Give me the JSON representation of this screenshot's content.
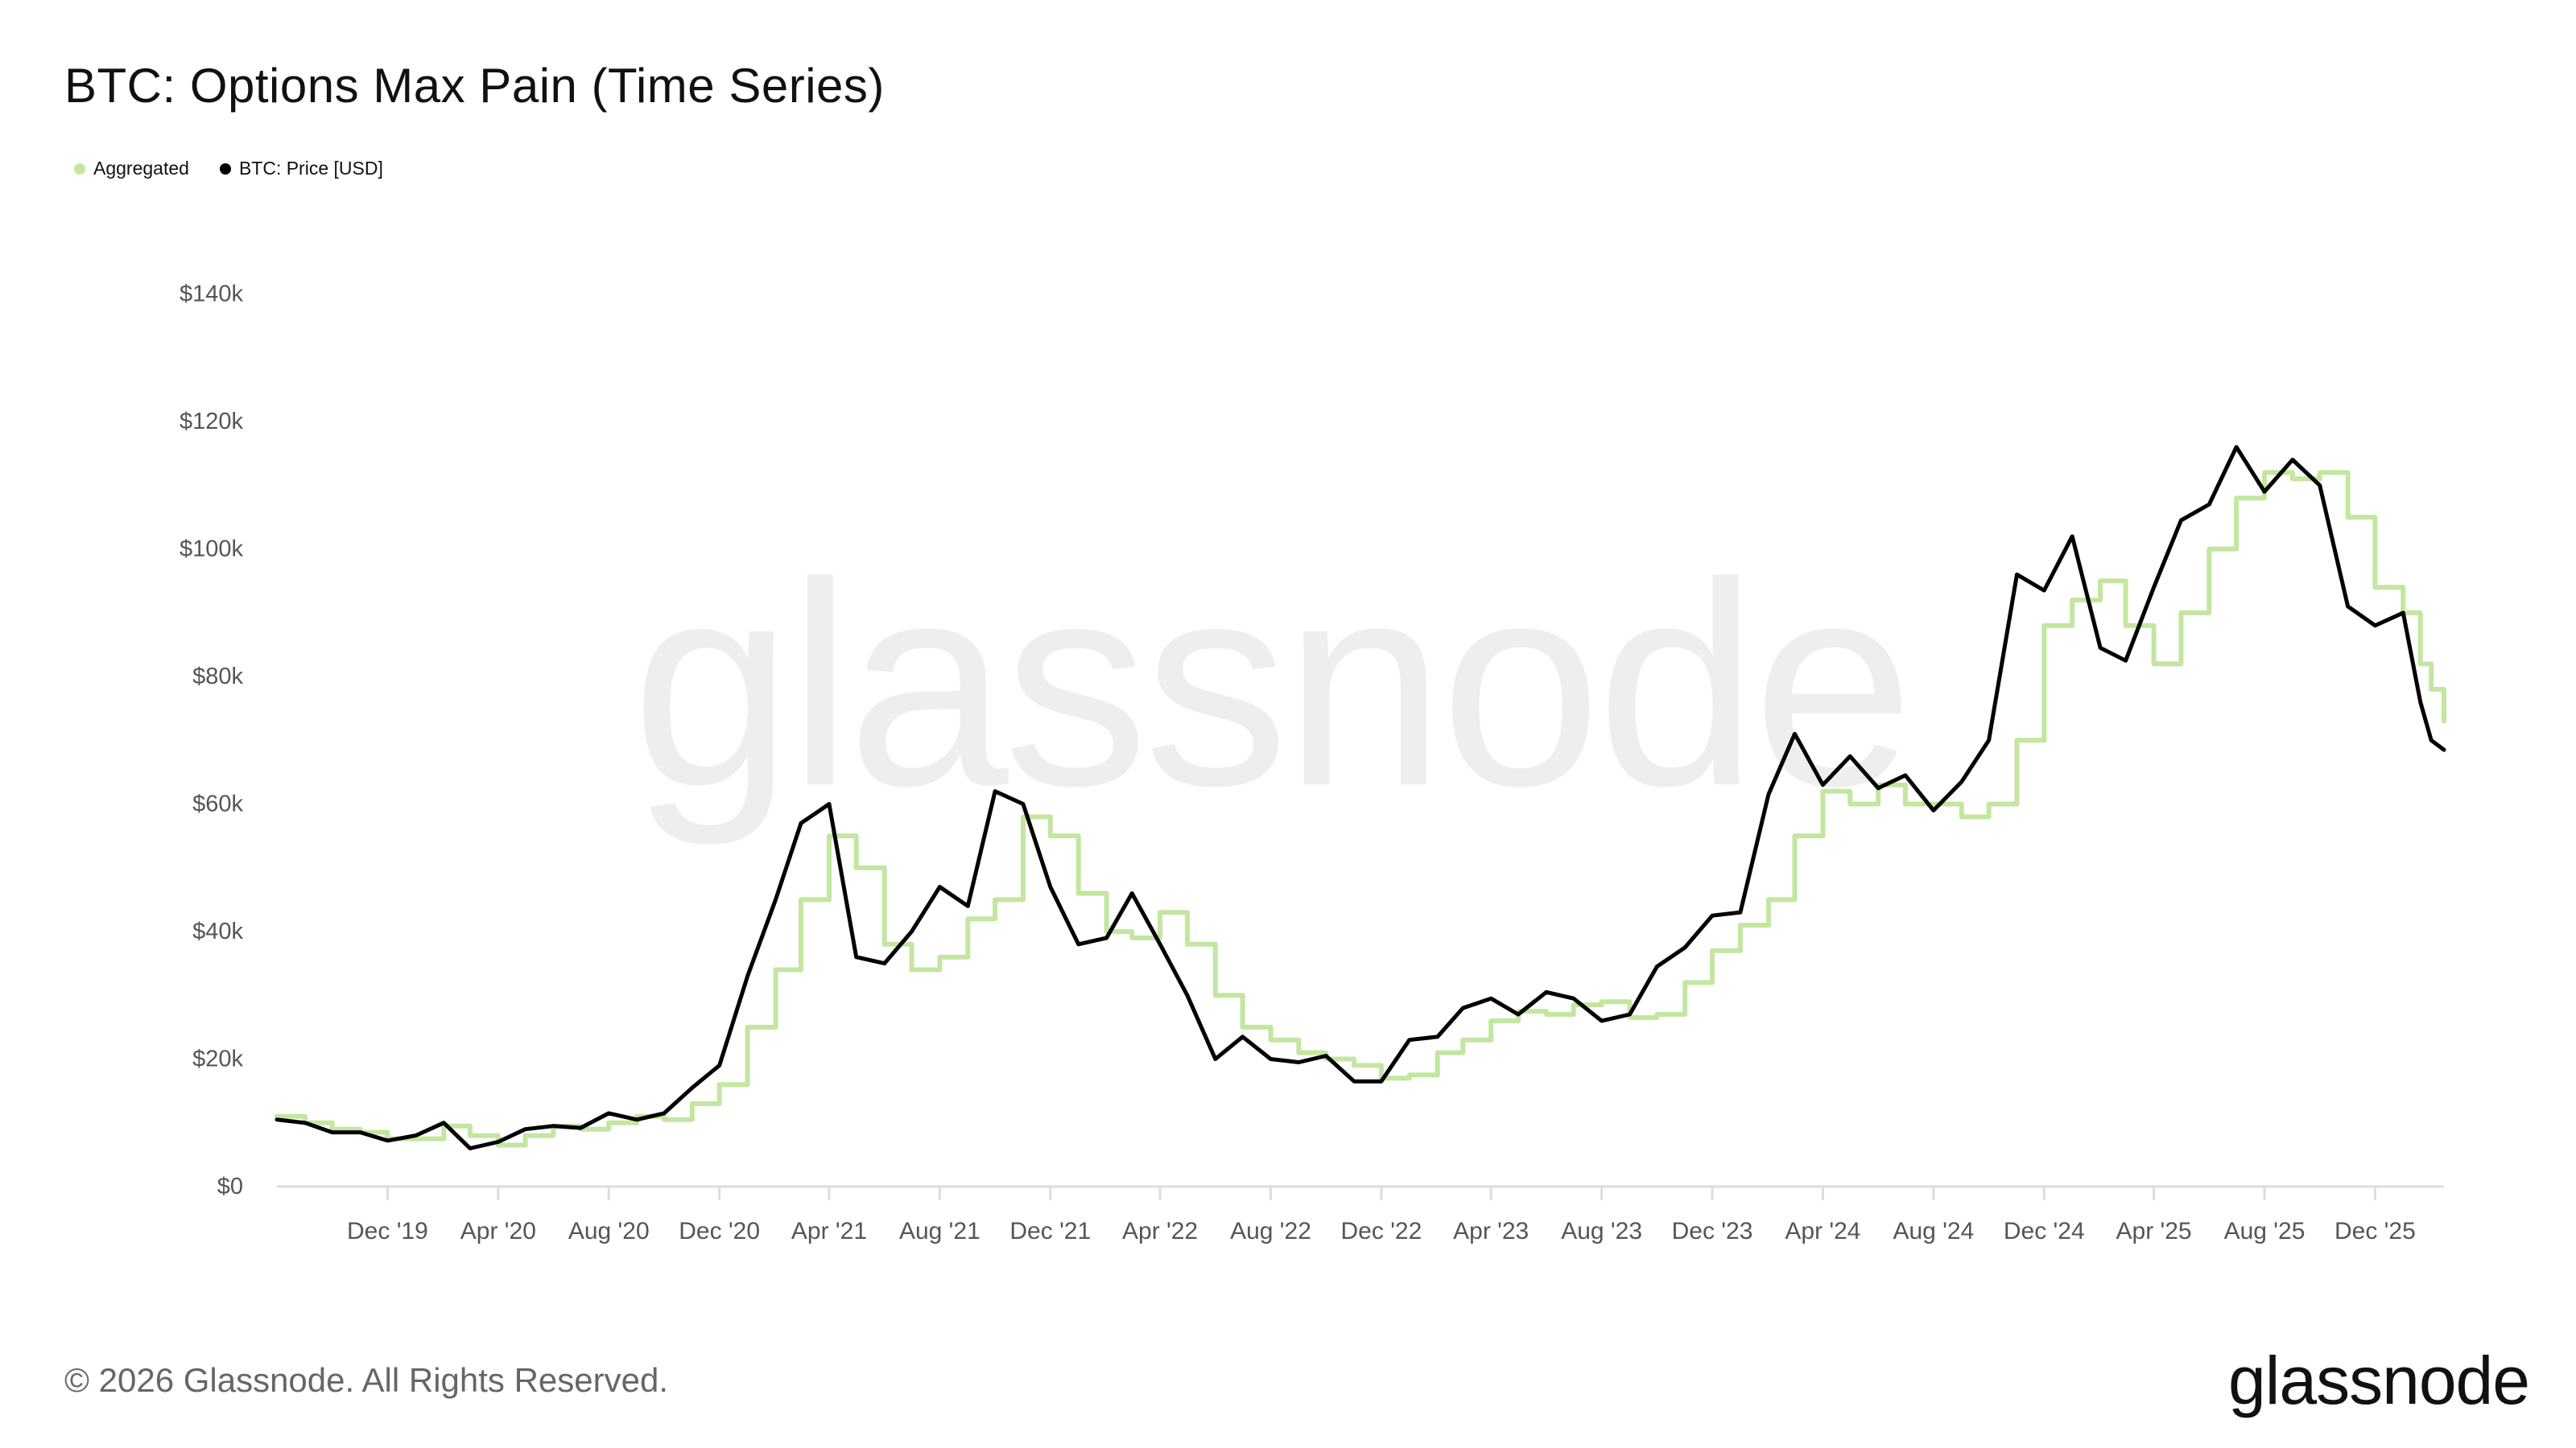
{
  "header": {
    "title": "BTC: Options Max Pain (Time Series)"
  },
  "legend": [
    {
      "label": "Aggregated",
      "color": "#c3e6a0"
    },
    {
      "label": "BTC: Price [USD]",
      "color": "#000000"
    }
  ],
  "watermark": "glassnode",
  "footer": {
    "copyright": "© 2026 Glassnode. All Rights Reserved.",
    "logo": "glassnode"
  },
  "colors": {
    "aggregated": "#c3e6a0",
    "price": "#000000",
    "axis_text": "#555555",
    "axis_line": "#dddddd"
  },
  "chart_data": {
    "type": "line",
    "title": "BTC: Options Max Pain (Time Series)",
    "xlabel": "",
    "ylabel": "",
    "ylim": [
      0,
      140000
    ],
    "xlim": [
      "2019-08-01",
      "2026-02-15"
    ],
    "grid": false,
    "legend_position": "top-left",
    "y_ticks": [
      {
        "value": 0,
        "label": "$0"
      },
      {
        "value": 20000,
        "label": "$20k"
      },
      {
        "value": 40000,
        "label": "$40k"
      },
      {
        "value": 60000,
        "label": "$60k"
      },
      {
        "value": 80000,
        "label": "$80k"
      },
      {
        "value": 100000,
        "label": "$100k"
      },
      {
        "value": 120000,
        "label": "$120k"
      },
      {
        "value": 140000,
        "label": "$140k"
      }
    ],
    "x_ticks": [
      {
        "date": "2019-12-01",
        "label": "Dec '19"
      },
      {
        "date": "2020-04-01",
        "label": "Apr '20"
      },
      {
        "date": "2020-08-01",
        "label": "Aug '20"
      },
      {
        "date": "2020-12-01",
        "label": "Dec '20"
      },
      {
        "date": "2021-04-01",
        "label": "Apr '21"
      },
      {
        "date": "2021-08-01",
        "label": "Aug '21"
      },
      {
        "date": "2021-12-01",
        "label": "Dec '21"
      },
      {
        "date": "2022-04-01",
        "label": "Apr '22"
      },
      {
        "date": "2022-08-01",
        "label": "Aug '22"
      },
      {
        "date": "2022-12-01",
        "label": "Dec '22"
      },
      {
        "date": "2023-04-01",
        "label": "Apr '23"
      },
      {
        "date": "2023-08-01",
        "label": "Aug '23"
      },
      {
        "date": "2023-12-01",
        "label": "Dec '23"
      },
      {
        "date": "2024-04-01",
        "label": "Apr '24"
      },
      {
        "date": "2024-08-01",
        "label": "Aug '24"
      },
      {
        "date": "2024-12-01",
        "label": "Dec '24"
      },
      {
        "date": "2025-04-01",
        "label": "Apr '25"
      },
      {
        "date": "2025-08-01",
        "label": "Aug '25"
      },
      {
        "date": "2025-12-01",
        "label": "Dec '25"
      }
    ],
    "series": [
      {
        "name": "Aggregated",
        "color": "#c3e6a0",
        "points": [
          [
            "2019-08-01",
            11000
          ],
          [
            "2019-09-01",
            10000
          ],
          [
            "2019-10-01",
            9000
          ],
          [
            "2019-11-01",
            8500
          ],
          [
            "2019-12-01",
            7500
          ],
          [
            "2020-01-01",
            7500
          ],
          [
            "2020-02-01",
            9500
          ],
          [
            "2020-03-01",
            8000
          ],
          [
            "2020-04-01",
            6500
          ],
          [
            "2020-05-01",
            8000
          ],
          [
            "2020-06-01",
            9500
          ],
          [
            "2020-07-01",
            9000
          ],
          [
            "2020-08-01",
            10000
          ],
          [
            "2020-09-01",
            11000
          ],
          [
            "2020-10-01",
            10500
          ],
          [
            "2020-11-01",
            13000
          ],
          [
            "2020-12-01",
            16000
          ],
          [
            "2021-01-01",
            25000
          ],
          [
            "2021-02-01",
            34000
          ],
          [
            "2021-03-01",
            45000
          ],
          [
            "2021-04-01",
            55000
          ],
          [
            "2021-05-01",
            50000
          ],
          [
            "2021-06-01",
            38000
          ],
          [
            "2021-07-01",
            34000
          ],
          [
            "2021-08-01",
            36000
          ],
          [
            "2021-09-01",
            42000
          ],
          [
            "2021-10-01",
            45000
          ],
          [
            "2021-11-01",
            58000
          ],
          [
            "2021-12-01",
            55000
          ],
          [
            "2022-01-01",
            46000
          ],
          [
            "2022-02-01",
            40000
          ],
          [
            "2022-03-01",
            39000
          ],
          [
            "2022-04-01",
            43000
          ],
          [
            "2022-05-01",
            38000
          ],
          [
            "2022-06-01",
            30000
          ],
          [
            "2022-07-01",
            25000
          ],
          [
            "2022-08-01",
            23000
          ],
          [
            "2022-09-01",
            21000
          ],
          [
            "2022-10-01",
            20000
          ],
          [
            "2022-11-01",
            19000
          ],
          [
            "2022-12-01",
            17000
          ],
          [
            "2023-01-01",
            17500
          ],
          [
            "2023-02-01",
            21000
          ],
          [
            "2023-03-01",
            23000
          ],
          [
            "2023-04-01",
            26000
          ],
          [
            "2023-05-01",
            27500
          ],
          [
            "2023-06-01",
            27000
          ],
          [
            "2023-07-01",
            28500
          ],
          [
            "2023-08-01",
            29000
          ],
          [
            "2023-09-01",
            26500
          ],
          [
            "2023-10-01",
            27000
          ],
          [
            "2023-11-01",
            32000
          ],
          [
            "2023-12-01",
            37000
          ],
          [
            "2024-01-01",
            41000
          ],
          [
            "2024-02-01",
            45000
          ],
          [
            "2024-03-01",
            55000
          ],
          [
            "2024-04-01",
            62000
          ],
          [
            "2024-05-01",
            60000
          ],
          [
            "2024-06-01",
            63000
          ],
          [
            "2024-07-01",
            60000
          ],
          [
            "2024-08-01",
            60000
          ],
          [
            "2024-09-01",
            58000
          ],
          [
            "2024-10-01",
            60000
          ],
          [
            "2024-11-01",
            70000
          ],
          [
            "2024-12-01",
            88000
          ],
          [
            "2025-01-01",
            92000
          ],
          [
            "2025-02-01",
            95000
          ],
          [
            "2025-03-01",
            88000
          ],
          [
            "2025-04-01",
            82000
          ],
          [
            "2025-05-01",
            90000
          ],
          [
            "2025-06-01",
            100000
          ],
          [
            "2025-07-01",
            108000
          ],
          [
            "2025-08-01",
            112000
          ],
          [
            "2025-09-01",
            111000
          ],
          [
            "2025-10-01",
            112000
          ],
          [
            "2025-11-01",
            105000
          ],
          [
            "2025-12-01",
            94000
          ],
          [
            "2026-01-01",
            90000
          ],
          [
            "2026-01-20",
            82000
          ],
          [
            "2026-02-01",
            78000
          ],
          [
            "2026-02-15",
            73000
          ]
        ]
      },
      {
        "name": "BTC: Price [USD]",
        "color": "#000000",
        "points": [
          [
            "2019-08-01",
            10500
          ],
          [
            "2019-09-01",
            10000
          ],
          [
            "2019-10-01",
            8500
          ],
          [
            "2019-11-01",
            8500
          ],
          [
            "2019-12-01",
            7200
          ],
          [
            "2020-01-01",
            8000
          ],
          [
            "2020-02-01",
            10000
          ],
          [
            "2020-03-01",
            6000
          ],
          [
            "2020-04-01",
            7000
          ],
          [
            "2020-05-01",
            9000
          ],
          [
            "2020-06-01",
            9500
          ],
          [
            "2020-07-01",
            9200
          ],
          [
            "2020-08-01",
            11500
          ],
          [
            "2020-09-01",
            10500
          ],
          [
            "2020-10-01",
            11500
          ],
          [
            "2020-11-01",
            15500
          ],
          [
            "2020-12-01",
            19000
          ],
          [
            "2021-01-01",
            33000
          ],
          [
            "2021-02-01",
            45000
          ],
          [
            "2021-03-01",
            57000
          ],
          [
            "2021-04-01",
            60000
          ],
          [
            "2021-05-01",
            36000
          ],
          [
            "2021-06-01",
            35000
          ],
          [
            "2021-07-01",
            40000
          ],
          [
            "2021-08-01",
            47000
          ],
          [
            "2021-09-01",
            44000
          ],
          [
            "2021-10-01",
            62000
          ],
          [
            "2021-11-01",
            60000
          ],
          [
            "2021-12-01",
            47000
          ],
          [
            "2022-01-01",
            38000
          ],
          [
            "2022-02-01",
            39000
          ],
          [
            "2022-03-01",
            46000
          ],
          [
            "2022-04-01",
            38000
          ],
          [
            "2022-05-01",
            30000
          ],
          [
            "2022-06-01",
            20000
          ],
          [
            "2022-07-01",
            23500
          ],
          [
            "2022-08-01",
            20000
          ],
          [
            "2022-09-01",
            19500
          ],
          [
            "2022-10-01",
            20500
          ],
          [
            "2022-11-01",
            16500
          ],
          [
            "2022-12-01",
            16500
          ],
          [
            "2023-01-01",
            23000
          ],
          [
            "2023-02-01",
            23500
          ],
          [
            "2023-03-01",
            28000
          ],
          [
            "2023-04-01",
            29500
          ],
          [
            "2023-05-01",
            27000
          ],
          [
            "2023-06-01",
            30500
          ],
          [
            "2023-07-01",
            29500
          ],
          [
            "2023-08-01",
            26000
          ],
          [
            "2023-09-01",
            27000
          ],
          [
            "2023-10-01",
            34500
          ],
          [
            "2023-11-01",
            37500
          ],
          [
            "2023-12-01",
            42500
          ],
          [
            "2024-01-01",
            43000
          ],
          [
            "2024-02-01",
            61500
          ],
          [
            "2024-03-01",
            71000
          ],
          [
            "2024-04-01",
            63000
          ],
          [
            "2024-05-01",
            67500
          ],
          [
            "2024-06-01",
            62500
          ],
          [
            "2024-07-01",
            64500
          ],
          [
            "2024-08-01",
            59000
          ],
          [
            "2024-09-01",
            63500
          ],
          [
            "2024-10-01",
            70000
          ],
          [
            "2024-11-01",
            96000
          ],
          [
            "2024-12-01",
            93500
          ],
          [
            "2025-01-01",
            102000
          ],
          [
            "2025-02-01",
            84500
          ],
          [
            "2025-03-01",
            82500
          ],
          [
            "2025-04-01",
            94000
          ],
          [
            "2025-05-01",
            104500
          ],
          [
            "2025-06-01",
            107000
          ],
          [
            "2025-07-01",
            116000
          ],
          [
            "2025-08-01",
            109000
          ],
          [
            "2025-09-01",
            114000
          ],
          [
            "2025-10-01",
            110000
          ],
          [
            "2025-11-01",
            91000
          ],
          [
            "2025-12-01",
            88000
          ],
          [
            "2026-01-01",
            90000
          ],
          [
            "2026-01-20",
            76000
          ],
          [
            "2026-02-01",
            70000
          ],
          [
            "2026-02-15",
            68500
          ]
        ]
      }
    ]
  }
}
